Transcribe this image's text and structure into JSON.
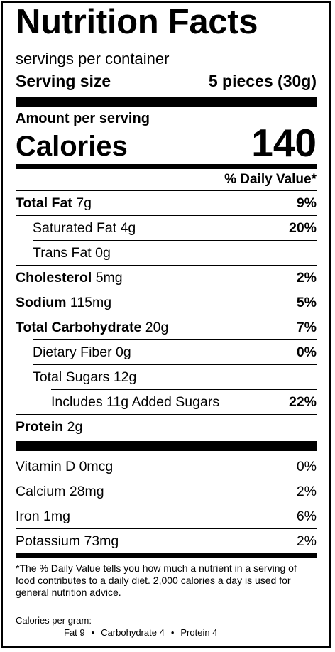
{
  "title": "Nutrition Facts",
  "servings_per_container": "servings per container",
  "serving_size": {
    "label": "Serving size",
    "value": "5 pieces (30g)"
  },
  "amount_per_serving": "Amount per serving",
  "calories": {
    "label": "Calories",
    "value": "140"
  },
  "daily_value_header": "% Daily Value*",
  "nutrients": [
    {
      "label": "Total Fat",
      "amount": "7g",
      "dv": "9%"
    },
    {
      "label": "Saturated Fat",
      "amount": "4g",
      "dv": "20%"
    },
    {
      "label": "Trans Fat",
      "amount": "0g",
      "dv": ""
    },
    {
      "label": "Cholesterol",
      "amount": "5mg",
      "dv": "2%"
    },
    {
      "label": "Sodium",
      "amount": "115mg",
      "dv": "5%"
    },
    {
      "label": "Total Carbohydrate",
      "amount": "20g",
      "dv": "7%"
    },
    {
      "label": "Dietary Fiber",
      "amount": "0g",
      "dv": "0%"
    },
    {
      "label": "Total Sugars",
      "amount": "12g",
      "dv": ""
    },
    {
      "label": "Includes 11g Added Sugars",
      "amount": "",
      "dv": "22%"
    },
    {
      "label": "Protein",
      "amount": "2g",
      "dv": ""
    }
  ],
  "vitamins": [
    {
      "label": "Vitamin D 0mcg",
      "dv": "0%"
    },
    {
      "label": "Calcium 28mg",
      "dv": "2%"
    },
    {
      "label": "Iron 1mg",
      "dv": "6%"
    },
    {
      "label": "Potassium 73mg",
      "dv": "2%"
    }
  ],
  "footnote": "*The % Daily Value tells you how much a nutrient in a serving of food contributes to a daily diet. 2,000 calories a day is used for general nutrition advice.",
  "calories_per_gram": {
    "label": "Calories per gram:",
    "fat": "Fat 9",
    "carbohydrate": "Carbohydrate 4",
    "protein": "Protein 4",
    "separator": "•"
  }
}
